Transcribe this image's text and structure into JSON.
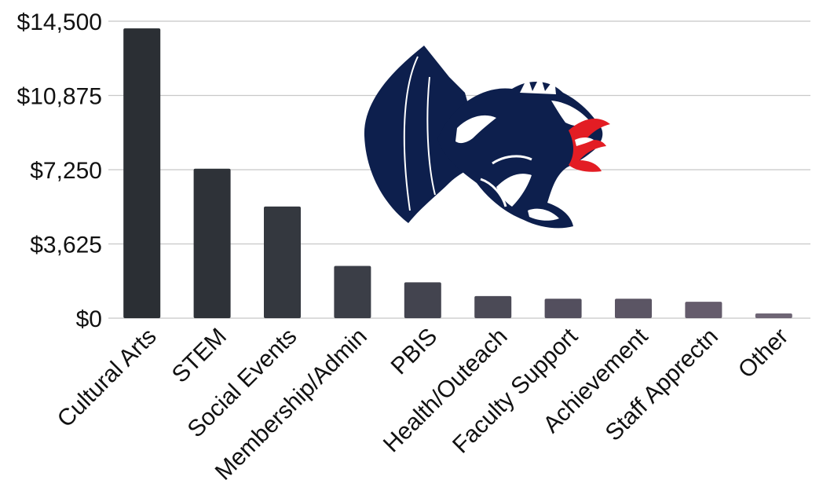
{
  "chart_data": {
    "type": "bar",
    "title": "",
    "xlabel": "",
    "ylabel": "",
    "categories": [
      "Cultural Arts",
      "STEM",
      "Social Events",
      "Membership/Admin",
      "PBIS",
      "Health/Outeach",
      "Faculty Support",
      "Achievement",
      "Staff Apprectn",
      "Other"
    ],
    "values": [
      14150,
      7300,
      5450,
      2550,
      1750,
      1080,
      950,
      950,
      800,
      230
    ],
    "ylim": [
      0,
      14500
    ],
    "yticks": [
      0,
      3625,
      7250,
      10875,
      14500
    ],
    "ytick_labels": [
      "$0",
      "$3,625",
      "$7,250",
      "$10,875",
      "$14,500"
    ],
    "grid": true,
    "legend": "none",
    "bar_colors": [
      "#2b2f34",
      "#2e3238",
      "#34383f",
      "#3b3e47",
      "#43444f",
      "#4b4a56",
      "#534f5e",
      "#5b5564",
      "#655c6c",
      "#6e6575"
    ],
    "grid_color": "#c8c8c8",
    "logo": {
      "icon": "dragon-logo-icon",
      "colors": {
        "navy": "#0d1f4d",
        "white": "#ffffff",
        "red": "#e31d24"
      }
    }
  }
}
